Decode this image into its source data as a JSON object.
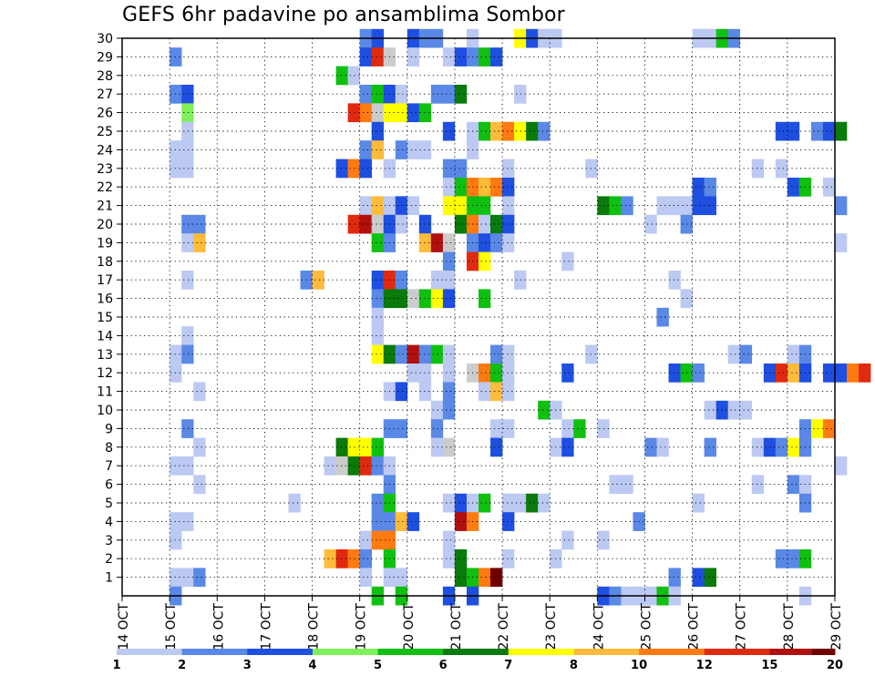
{
  "chart_data": {
    "type": "heatmap",
    "title": "GEFS 6hr padavine po ansamblima Sombor",
    "x_tick_labels": [
      "14 OCT",
      "15 OCT",
      "16 OCT",
      "17 OCT",
      "18 OCT",
      "19 OCT",
      "20 OCT",
      "21 OCT",
      "22 OCT",
      "23 OCT",
      "24 OCT",
      "25 OCT",
      "26 OCT",
      "27 OCT",
      "28 OCT",
      "29 OCT"
    ],
    "xlim_days": [
      0,
      15
    ],
    "time_step_hours": 6,
    "y_tick_labels": [
      1,
      2,
      3,
      4,
      5,
      6,
      7,
      8,
      9,
      10,
      11,
      12,
      13,
      14,
      15,
      16,
      17,
      18,
      19,
      20,
      21,
      22,
      23,
      24,
      25,
      26,
      27,
      28,
      29,
      30
    ],
    "ylim": [
      0,
      30
    ],
    "grid": true,
    "colorbar": {
      "labels": [
        "1",
        "2",
        "3",
        "4",
        "5",
        "6",
        "7",
        "8",
        "10",
        "12",
        "15",
        "20"
      ],
      "colors": [
        "#bcc9f3",
        "#5a88e6",
        "#1f4fe0",
        "#7ff05a",
        "#10c010",
        "#0a7a0a",
        "#ffff00",
        "#ffbb3a",
        "#ff7a10",
        "#e02a10",
        "#b01010",
        "#700000"
      ]
    },
    "cells": [
      [
        30,
        20,
        2
      ],
      [
        30,
        21,
        3
      ],
      [
        30,
        24,
        3
      ],
      [
        30,
        25,
        2
      ],
      [
        30,
        26,
        2
      ],
      [
        30,
        29,
        1
      ],
      [
        30,
        33,
        7
      ],
      [
        30,
        34,
        3
      ],
      [
        30,
        35,
        1
      ],
      [
        30,
        36,
        1
      ],
      [
        30,
        48,
        1
      ],
      [
        30,
        49,
        1
      ],
      [
        30,
        50,
        5
      ],
      [
        30,
        51,
        2
      ],
      [
        29,
        4,
        2
      ],
      [
        29,
        20,
        3
      ],
      [
        29,
        21,
        12
      ],
      [
        29,
        22,
        9
      ],
      [
        29,
        24,
        1
      ],
      [
        29,
        27,
        1
      ],
      [
        29,
        28,
        3
      ],
      [
        29,
        29,
        2
      ],
      [
        29,
        30,
        5
      ],
      [
        29,
        31,
        3
      ],
      [
        28,
        18,
        5
      ],
      [
        28,
        19,
        1
      ],
      [
        27,
        4,
        2
      ],
      [
        27,
        5,
        3
      ],
      [
        27,
        20,
        2
      ],
      [
        27,
        21,
        5
      ],
      [
        27,
        22,
        3
      ],
      [
        27,
        23,
        1
      ],
      [
        27,
        26,
        2
      ],
      [
        27,
        27,
        2
      ],
      [
        27,
        28,
        6
      ],
      [
        27,
        33,
        1
      ],
      [
        26,
        5,
        4
      ],
      [
        26,
        19,
        12
      ],
      [
        26,
        20,
        10
      ],
      [
        26,
        21,
        9
      ],
      [
        26,
        22,
        7
      ],
      [
        26,
        23,
        7
      ],
      [
        26,
        24,
        3
      ],
      [
        26,
        25,
        5
      ],
      [
        25,
        5,
        1
      ],
      [
        25,
        21,
        3
      ],
      [
        25,
        27,
        3
      ],
      [
        25,
        29,
        1
      ],
      [
        25,
        30,
        5
      ],
      [
        25,
        31,
        8
      ],
      [
        25,
        32,
        10
      ],
      [
        25,
        33,
        7
      ],
      [
        25,
        34,
        6
      ],
      [
        25,
        35,
        2
      ],
      [
        25,
        55,
        3
      ],
      [
        25,
        56,
        3
      ],
      [
        25,
        58,
        2
      ],
      [
        25,
        59,
        3
      ],
      [
        25,
        60,
        6
      ],
      [
        24,
        4,
        1
      ],
      [
        24,
        5,
        1
      ],
      [
        24,
        20,
        2
      ],
      [
        24,
        21,
        8
      ],
      [
        24,
        23,
        2
      ],
      [
        24,
        24,
        1
      ],
      [
        24,
        25,
        1
      ],
      [
        24,
        29,
        1
      ],
      [
        23,
        4,
        1
      ],
      [
        23,
        5,
        1
      ],
      [
        23,
        18,
        3
      ],
      [
        23,
        19,
        10
      ],
      [
        23,
        20,
        3
      ],
      [
        23,
        22,
        1
      ],
      [
        23,
        27,
        2
      ],
      [
        23,
        28,
        2
      ],
      [
        23,
        32,
        1
      ],
      [
        23,
        39,
        1
      ],
      [
        23,
        53,
        1
      ],
      [
        23,
        55,
        1
      ],
      [
        22,
        27,
        1
      ],
      [
        22,
        28,
        5
      ],
      [
        22,
        29,
        10
      ],
      [
        22,
        30,
        8
      ],
      [
        22,
        31,
        10
      ],
      [
        22,
        32,
        3
      ],
      [
        22,
        48,
        3
      ],
      [
        22,
        49,
        2
      ],
      [
        22,
        56,
        3
      ],
      [
        22,
        57,
        5
      ],
      [
        22,
        59,
        1
      ],
      [
        21,
        20,
        1
      ],
      [
        21,
        21,
        8
      ],
      [
        21,
        22,
        1
      ],
      [
        21,
        23,
        3
      ],
      [
        21,
        24,
        1
      ],
      [
        21,
        27,
        7
      ],
      [
        21,
        28,
        7
      ],
      [
        21,
        29,
        5
      ],
      [
        21,
        30,
        5
      ],
      [
        21,
        32,
        1
      ],
      [
        21,
        40,
        6
      ],
      [
        21,
        41,
        5
      ],
      [
        21,
        42,
        2
      ],
      [
        21,
        45,
        1
      ],
      [
        21,
        46,
        1
      ],
      [
        21,
        47,
        1
      ],
      [
        21,
        48,
        3
      ],
      [
        21,
        49,
        3
      ],
      [
        21,
        60,
        2
      ],
      [
        20,
        5,
        2
      ],
      [
        20,
        6,
        2
      ],
      [
        20,
        19,
        12
      ],
      [
        20,
        20,
        15
      ],
      [
        20,
        21,
        9
      ],
      [
        20,
        22,
        3
      ],
      [
        20,
        23,
        1
      ],
      [
        20,
        25,
        3
      ],
      [
        20,
        28,
        6
      ],
      [
        20,
        29,
        10
      ],
      [
        20,
        30,
        1
      ],
      [
        20,
        31,
        6
      ],
      [
        20,
        32,
        3
      ],
      [
        20,
        44,
        1
      ],
      [
        20,
        47,
        2
      ],
      [
        19,
        5,
        1
      ],
      [
        19,
        6,
        8
      ],
      [
        19,
        21,
        5
      ],
      [
        19,
        22,
        2
      ],
      [
        19,
        25,
        8
      ],
      [
        19,
        26,
        15
      ],
      [
        19,
        27,
        9
      ],
      [
        19,
        29,
        2
      ],
      [
        19,
        30,
        3
      ],
      [
        19,
        31,
        2
      ],
      [
        19,
        32,
        1
      ],
      [
        19,
        60,
        1
      ],
      [
        18,
        27,
        2
      ],
      [
        18,
        29,
        12
      ],
      [
        18,
        30,
        7
      ],
      [
        18,
        37,
        1
      ],
      [
        17,
        5,
        1
      ],
      [
        17,
        15,
        2
      ],
      [
        17,
        16,
        8
      ],
      [
        17,
        21,
        3
      ],
      [
        17,
        22,
        12
      ],
      [
        17,
        23,
        2
      ],
      [
        17,
        26,
        1
      ],
      [
        17,
        27,
        1
      ],
      [
        17,
        33,
        1
      ],
      [
        17,
        46,
        1
      ],
      [
        16,
        21,
        2
      ],
      [
        16,
        22,
        6
      ],
      [
        16,
        23,
        6
      ],
      [
        16,
        24,
        9
      ],
      [
        16,
        25,
        5
      ],
      [
        16,
        26,
        7
      ],
      [
        16,
        27,
        3
      ],
      [
        16,
        30,
        5
      ],
      [
        16,
        47,
        1
      ],
      [
        15,
        21,
        1
      ],
      [
        15,
        45,
        2
      ],
      [
        14,
        5,
        1
      ],
      [
        14,
        21,
        1
      ],
      [
        13,
        4,
        1
      ],
      [
        13,
        5,
        2
      ],
      [
        13,
        21,
        7
      ],
      [
        13,
        22,
        6
      ],
      [
        13,
        23,
        2
      ],
      [
        13,
        24,
        15
      ],
      [
        13,
        25,
        2
      ],
      [
        13,
        26,
        5
      ],
      [
        13,
        27,
        1
      ],
      [
        13,
        31,
        2
      ],
      [
        13,
        32,
        1
      ],
      [
        13,
        39,
        1
      ],
      [
        13,
        51,
        1
      ],
      [
        13,
        52,
        2
      ],
      [
        13,
        56,
        1
      ],
      [
        13,
        57,
        2
      ],
      [
        12,
        4,
        1
      ],
      [
        12,
        24,
        1
      ],
      [
        12,
        25,
        1
      ],
      [
        12,
        27,
        1
      ],
      [
        12,
        29,
        9
      ],
      [
        12,
        30,
        10
      ],
      [
        12,
        31,
        5
      ],
      [
        12,
        32,
        1
      ],
      [
        12,
        37,
        3
      ],
      [
        12,
        46,
        3
      ],
      [
        12,
        47,
        5
      ],
      [
        12,
        48,
        2
      ],
      [
        12,
        54,
        3
      ],
      [
        12,
        55,
        12
      ],
      [
        12,
        56,
        8
      ],
      [
        12,
        57,
        3
      ],
      [
        12,
        59,
        3
      ],
      [
        12,
        60,
        3
      ],
      [
        12,
        61,
        10
      ],
      [
        12,
        62,
        12
      ],
      [
        11,
        6,
        1
      ],
      [
        11,
        22,
        1
      ],
      [
        11,
        23,
        3
      ],
      [
        11,
        25,
        1
      ],
      [
        11,
        27,
        2
      ],
      [
        11,
        30,
        1
      ],
      [
        11,
        31,
        8
      ],
      [
        11,
        32,
        1
      ],
      [
        10,
        26,
        1
      ],
      [
        10,
        27,
        2
      ],
      [
        10,
        35,
        5
      ],
      [
        10,
        36,
        1
      ],
      [
        10,
        49,
        1
      ],
      [
        10,
        50,
        3
      ],
      [
        10,
        51,
        1
      ],
      [
        10,
        52,
        1
      ],
      [
        9,
        5,
        2
      ],
      [
        9,
        22,
        2
      ],
      [
        9,
        23,
        2
      ],
      [
        9,
        26,
        2
      ],
      [
        9,
        31,
        1
      ],
      [
        9,
        32,
        1
      ],
      [
        9,
        37,
        1
      ],
      [
        9,
        38,
        5
      ],
      [
        9,
        40,
        1
      ],
      [
        9,
        57,
        2
      ],
      [
        9,
        58,
        7
      ],
      [
        9,
        59,
        10
      ],
      [
        8,
        6,
        1
      ],
      [
        8,
        18,
        6
      ],
      [
        8,
        19,
        7
      ],
      [
        8,
        20,
        7
      ],
      [
        8,
        21,
        5
      ],
      [
        8,
        26,
        1
      ],
      [
        8,
        27,
        9
      ],
      [
        8,
        31,
        3
      ],
      [
        8,
        36,
        1
      ],
      [
        8,
        37,
        3
      ],
      [
        8,
        44,
        2
      ],
      [
        8,
        45,
        1
      ],
      [
        8,
        49,
        2
      ],
      [
        8,
        53,
        1
      ],
      [
        8,
        54,
        3
      ],
      [
        8,
        55,
        2
      ],
      [
        8,
        56,
        7
      ],
      [
        8,
        57,
        2
      ],
      [
        7,
        4,
        1
      ],
      [
        7,
        5,
        1
      ],
      [
        7,
        17,
        1
      ],
      [
        7,
        18,
        9
      ],
      [
        7,
        19,
        6
      ],
      [
        7,
        20,
        12
      ],
      [
        7,
        21,
        2
      ],
      [
        7,
        22,
        1
      ],
      [
        7,
        60,
        1
      ],
      [
        6,
        6,
        1
      ],
      [
        6,
        22,
        2
      ],
      [
        6,
        41,
        1
      ],
      [
        6,
        42,
        1
      ],
      [
        6,
        53,
        1
      ],
      [
        6,
        56,
        2
      ],
      [
        6,
        57,
        1
      ],
      [
        5,
        14,
        1
      ],
      [
        5,
        21,
        2
      ],
      [
        5,
        22,
        5
      ],
      [
        5,
        27,
        1
      ],
      [
        5,
        28,
        3
      ],
      [
        5,
        29,
        1
      ],
      [
        5,
        30,
        5
      ],
      [
        5,
        32,
        1
      ],
      [
        5,
        33,
        1
      ],
      [
        5,
        34,
        6
      ],
      [
        5,
        35,
        1
      ],
      [
        5,
        48,
        1
      ],
      [
        5,
        57,
        2
      ],
      [
        4,
        4,
        1
      ],
      [
        4,
        5,
        1
      ],
      [
        4,
        21,
        2
      ],
      [
        4,
        22,
        2
      ],
      [
        4,
        23,
        8
      ],
      [
        4,
        24,
        3
      ],
      [
        4,
        28,
        15
      ],
      [
        4,
        29,
        10
      ],
      [
        4,
        32,
        3
      ],
      [
        4,
        43,
        2
      ],
      [
        3,
        4,
        1
      ],
      [
        3,
        20,
        1
      ],
      [
        3,
        21,
        10
      ],
      [
        3,
        22,
        10
      ],
      [
        3,
        27,
        1
      ],
      [
        3,
        37,
        1
      ],
      [
        3,
        40,
        1
      ],
      [
        2,
        17,
        8
      ],
      [
        2,
        18,
        12
      ],
      [
        2,
        19,
        10
      ],
      [
        2,
        20,
        2
      ],
      [
        2,
        22,
        5
      ],
      [
        2,
        27,
        1
      ],
      [
        2,
        28,
        6
      ],
      [
        2,
        32,
        1
      ],
      [
        2,
        36,
        1
      ],
      [
        2,
        55,
        2
      ],
      [
        2,
        56,
        2
      ],
      [
        2,
        57,
        5
      ],
      [
        1,
        4,
        1
      ],
      [
        1,
        5,
        1
      ],
      [
        1,
        6,
        2
      ],
      [
        1,
        20,
        1
      ],
      [
        1,
        22,
        1
      ],
      [
        1,
        23,
        1
      ],
      [
        1,
        28,
        6
      ],
      [
        1,
        29,
        5
      ],
      [
        1,
        30,
        10
      ],
      [
        1,
        31,
        20
      ],
      [
        1,
        46,
        2
      ],
      [
        1,
        48,
        3
      ],
      [
        1,
        49,
        6
      ],
      [
        0,
        4,
        2
      ],
      [
        0,
        21,
        5
      ],
      [
        0,
        23,
        5
      ],
      [
        0,
        27,
        3
      ],
      [
        0,
        29,
        3
      ],
      [
        0,
        40,
        3
      ],
      [
        0,
        41,
        2
      ],
      [
        0,
        42,
        1
      ],
      [
        0,
        43,
        1
      ],
      [
        0,
        44,
        1
      ],
      [
        0,
        45,
        5
      ],
      [
        0,
        46,
        1
      ],
      [
        0,
        57,
        1
      ]
    ]
  }
}
